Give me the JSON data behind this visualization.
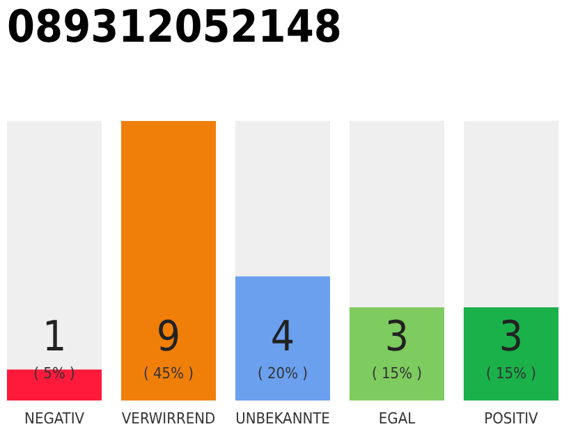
{
  "chart_data": {
    "type": "bar",
    "title": "089312052148",
    "categories": [
      "NEGATIV",
      "VERWIRREND",
      "UNBEKANNTE",
      "EGAL",
      "POSITIV"
    ],
    "stacked": true,
    "series": [
      {
        "colors": [
          "#ff1a3c",
          "#f07f0a",
          "#6aa0ee",
          "#7ecb60",
          "#1ab04a"
        ],
        "values": [
          1,
          9,
          4,
          3,
          3
        ],
        "value_labels": [
          "1",
          "9",
          "4",
          "3",
          "3"
        ]
      },
      {
        "color": "#efefef",
        "values": [
          8,
          0,
          5,
          6,
          6
        ]
      }
    ],
    "annotations": [
      "( 5% )",
      "( 45% )",
      "( 20% )",
      "( 15% )",
      "( 15% )"
    ],
    "ylim": [
      0,
      9
    ],
    "tick_labels": "x"
  }
}
